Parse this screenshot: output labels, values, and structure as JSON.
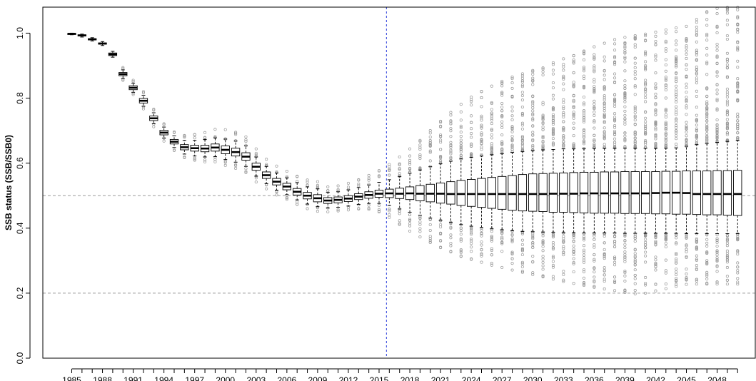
{
  "chart_data": {
    "type": "boxplot",
    "title": "",
    "xlabel": "",
    "ylabel": "SSB status (SSB/SSB0)",
    "ylim": [
      0,
      1.08
    ],
    "y_ticks": [
      0.0,
      0.2,
      0.4,
      0.6,
      0.8,
      1.0
    ],
    "y_tick_labels": [
      "0.0",
      "0.2",
      "0.4",
      "0.6",
      "0.8",
      "1.0"
    ],
    "x_tick_labels": [
      "1985",
      "1988",
      "1991",
      "1994",
      "1997",
      "2000",
      "2003",
      "2006",
      "2009",
      "2012",
      "2015",
      "2018",
      "2021",
      "2024",
      "2027",
      "2030",
      "2033",
      "2036",
      "2039",
      "2042",
      "2045",
      "2048"
    ],
    "reference_lines": {
      "horizontal": [
        0.5,
        0.2
      ],
      "vertical_year": 2016
    },
    "grid": false,
    "colors": {
      "box": "#000000",
      "outlier": "#999999",
      "ref_horizontal": "#999999",
      "ref_vertical": "#3344dd"
    },
    "years": [
      1985,
      1986,
      1987,
      1988,
      1989,
      1990,
      1991,
      1992,
      1993,
      1994,
      1995,
      1996,
      1997,
      1998,
      1999,
      2000,
      2001,
      2002,
      2003,
      2004,
      2005,
      2006,
      2007,
      2008,
      2009,
      2010,
      2011,
      2012,
      2013,
      2014,
      2015,
      2016,
      2017,
      2018,
      2019,
      2020,
      2021,
      2022,
      2023,
      2024,
      2025,
      2026,
      2027,
      2028,
      2029,
      2030,
      2031,
      2032,
      2033,
      2034,
      2035,
      2036,
      2037,
      2038,
      2039,
      2040,
      2041,
      2042,
      2043,
      2044,
      2045,
      2046,
      2047,
      2048,
      2049,
      2050
    ],
    "median": [
      0.998,
      0.993,
      0.981,
      0.968,
      0.935,
      0.874,
      0.832,
      0.792,
      0.738,
      0.694,
      0.666,
      0.649,
      0.646,
      0.645,
      0.648,
      0.641,
      0.634,
      0.62,
      0.589,
      0.563,
      0.543,
      0.528,
      0.512,
      0.5,
      0.492,
      0.485,
      0.487,
      0.491,
      0.497,
      0.502,
      0.506,
      0.507,
      0.506,
      0.507,
      0.506,
      0.506,
      0.506,
      0.505,
      0.505,
      0.505,
      0.505,
      0.505,
      0.505,
      0.505,
      0.505,
      0.505,
      0.505,
      0.506,
      0.506,
      0.506,
      0.507,
      0.507,
      0.507,
      0.507,
      0.507,
      0.507,
      0.507,
      0.508,
      0.509,
      0.509,
      0.508,
      0.505,
      0.505,
      0.505,
      0.505,
      0.505
    ],
    "q1": [
      0.997,
      0.991,
      0.979,
      0.966,
      0.931,
      0.869,
      0.826,
      0.785,
      0.731,
      0.687,
      0.659,
      0.641,
      0.637,
      0.635,
      0.637,
      0.629,
      0.622,
      0.609,
      0.578,
      0.553,
      0.533,
      0.518,
      0.502,
      0.49,
      0.481,
      0.476,
      0.478,
      0.482,
      0.488,
      0.492,
      0.495,
      0.494,
      0.491,
      0.488,
      0.484,
      0.481,
      0.477,
      0.474,
      0.47,
      0.467,
      0.464,
      0.461,
      0.458,
      0.455,
      0.453,
      0.452,
      0.451,
      0.449,
      0.449,
      0.448,
      0.447,
      0.446,
      0.446,
      0.446,
      0.445,
      0.445,
      0.445,
      0.444,
      0.444,
      0.443,
      0.443,
      0.442,
      0.441,
      0.441,
      0.44,
      0.439
    ],
    "q3": [
      0.999,
      0.995,
      0.983,
      0.97,
      0.939,
      0.879,
      0.838,
      0.799,
      0.745,
      0.701,
      0.673,
      0.657,
      0.655,
      0.655,
      0.659,
      0.653,
      0.646,
      0.632,
      0.6,
      0.573,
      0.553,
      0.538,
      0.522,
      0.51,
      0.503,
      0.494,
      0.496,
      0.5,
      0.506,
      0.512,
      0.517,
      0.52,
      0.523,
      0.527,
      0.531,
      0.535,
      0.539,
      0.543,
      0.547,
      0.55,
      0.553,
      0.556,
      0.559,
      0.562,
      0.565,
      0.567,
      0.568,
      0.569,
      0.57,
      0.571,
      0.572,
      0.572,
      0.573,
      0.573,
      0.574,
      0.574,
      0.574,
      0.574,
      0.575,
      0.575,
      0.576,
      0.576,
      0.576,
      0.577,
      0.577,
      0.578
    ],
    "whisker_low": [
      0.995,
      0.988,
      0.976,
      0.962,
      0.926,
      0.861,
      0.818,
      0.775,
      0.721,
      0.677,
      0.648,
      0.628,
      0.622,
      0.619,
      0.62,
      0.611,
      0.603,
      0.59,
      0.56,
      0.537,
      0.517,
      0.503,
      0.487,
      0.474,
      0.466,
      0.462,
      0.464,
      0.468,
      0.473,
      0.476,
      0.476,
      0.47,
      0.459,
      0.449,
      0.44,
      0.431,
      0.424,
      0.418,
      0.411,
      0.406,
      0.402,
      0.398,
      0.395,
      0.392,
      0.39,
      0.389,
      0.388,
      0.387,
      0.386,
      0.386,
      0.385,
      0.385,
      0.385,
      0.385,
      0.384,
      0.384,
      0.384,
      0.384,
      0.384,
      0.384,
      0.383,
      0.383,
      0.383,
      0.383,
      0.383,
      0.383
    ],
    "whisker_high": [
      1.0,
      0.997,
      0.986,
      0.974,
      0.944,
      0.887,
      0.846,
      0.809,
      0.755,
      0.711,
      0.684,
      0.67,
      0.67,
      0.673,
      0.678,
      0.674,
      0.668,
      0.653,
      0.619,
      0.59,
      0.57,
      0.555,
      0.54,
      0.527,
      0.521,
      0.51,
      0.512,
      0.518,
      0.525,
      0.533,
      0.541,
      0.549,
      0.559,
      0.569,
      0.579,
      0.589,
      0.598,
      0.606,
      0.613,
      0.618,
      0.622,
      0.626,
      0.629,
      0.633,
      0.636,
      0.639,
      0.641,
      0.642,
      0.644,
      0.645,
      0.645,
      0.646,
      0.646,
      0.646,
      0.646,
      0.646,
      0.646,
      0.646,
      0.646,
      0.647,
      0.652,
      0.657,
      0.661,
      0.664,
      0.667,
      0.67
    ],
    "outlier_low": [
      0.995,
      0.987,
      0.974,
      0.96,
      0.922,
      0.855,
      0.811,
      0.767,
      0.712,
      0.668,
      0.639,
      0.617,
      0.609,
      0.604,
      0.604,
      0.593,
      0.584,
      0.571,
      0.542,
      0.521,
      0.502,
      0.489,
      0.473,
      0.46,
      0.452,
      0.45,
      0.453,
      0.456,
      0.459,
      0.458,
      0.45,
      0.433,
      0.411,
      0.391,
      0.373,
      0.356,
      0.34,
      0.327,
      0.313,
      0.304,
      0.295,
      0.286,
      0.279,
      0.271,
      0.264,
      0.257,
      0.25,
      0.243,
      0.236,
      0.23,
      0.224,
      0.218,
      0.213,
      0.208,
      0.202,
      0.198,
      0.2,
      0.207,
      0.214,
      0.221,
      0.227,
      0.228,
      0.228,
      0.228,
      0.228,
      0.228
    ],
    "outlier_high": [
      1.0,
      0.998,
      0.988,
      0.976,
      0.948,
      0.894,
      0.855,
      0.82,
      0.766,
      0.721,
      0.696,
      0.685,
      0.688,
      0.694,
      0.704,
      0.703,
      0.695,
      0.681,
      0.644,
      0.612,
      0.591,
      0.575,
      0.56,
      0.548,
      0.543,
      0.527,
      0.53,
      0.538,
      0.549,
      0.562,
      0.577,
      0.596,
      0.619,
      0.644,
      0.67,
      0.7,
      0.729,
      0.756,
      0.781,
      0.803,
      0.821,
      0.837,
      0.852,
      0.865,
      0.875,
      0.885,
      0.893,
      0.909,
      0.921,
      0.931,
      0.945,
      0.958,
      0.969,
      0.98,
      0.987,
      0.992,
      0.997,
      1.003,
      1.01,
      1.016,
      1.021,
      1.042,
      1.066,
      1.076,
      1.079,
      1.079
    ]
  }
}
